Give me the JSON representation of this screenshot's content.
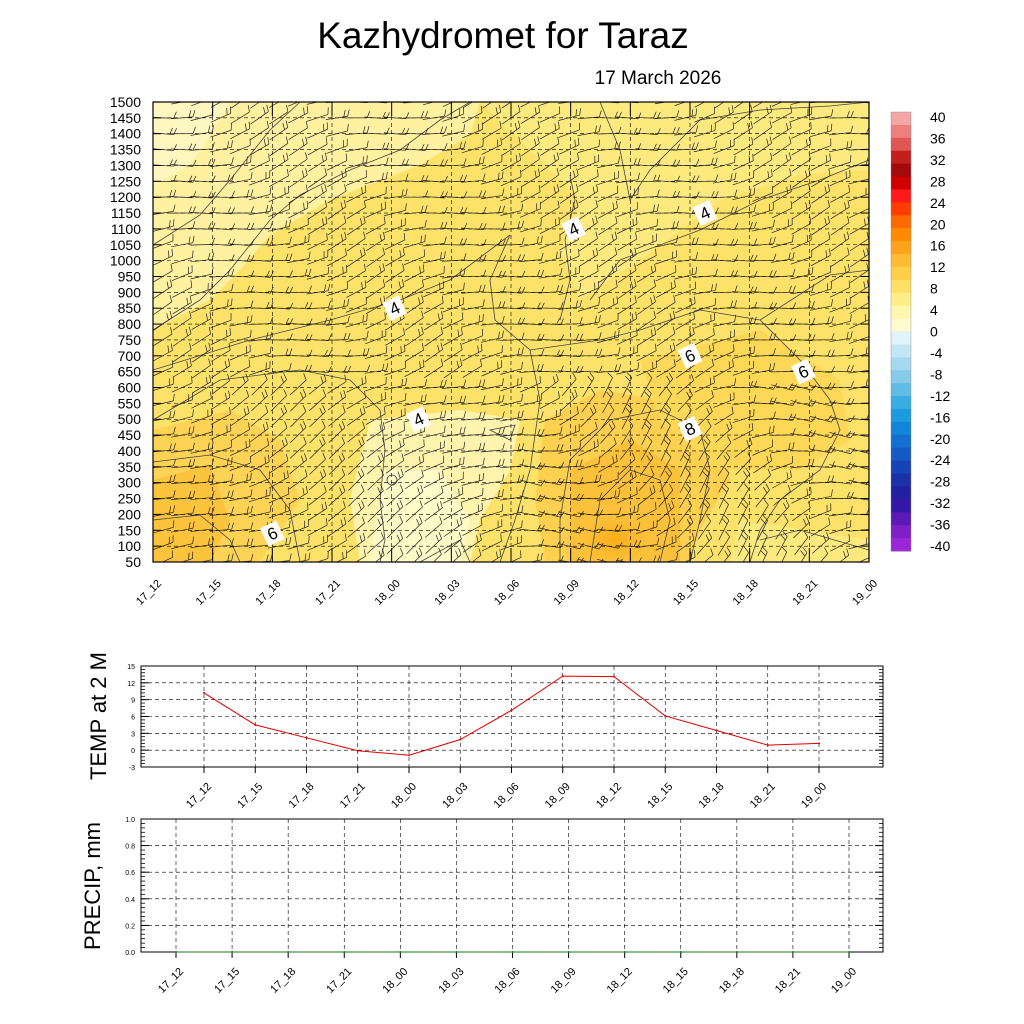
{
  "header": {
    "title": "Kazhydromet  for Taraz",
    "date": "17 March 2026"
  },
  "chart_data": [
    {
      "type": "heatmap",
      "name": "vertical-cross-section",
      "title": "Kazhydromet  for Taraz",
      "subtitle": "17 March 2026",
      "xlabel": "",
      "ylabel": "",
      "time_labels": [
        "17_12",
        "17_15",
        "17_18",
        "17_21",
        "18_00",
        "18_03",
        "18_06",
        "18_09",
        "18_12",
        "18_15",
        "18_18",
        "18_21",
        "19_00"
      ],
      "height_ticks": [
        50,
        100,
        150,
        200,
        250,
        300,
        350,
        400,
        450,
        500,
        550,
        600,
        650,
        700,
        750,
        800,
        850,
        900,
        950,
        1000,
        1050,
        1100,
        1150,
        1200,
        1250,
        1300,
        1350,
        1400,
        1450,
        1500
      ],
      "ylim": [
        50,
        1500
      ],
      "contour_labels": [
        {
          "text": "4",
          "time_index": 4.05,
          "height": 850
        },
        {
          "text": "4",
          "time_index": 4.45,
          "height": 500
        },
        {
          "text": "4",
          "time_index": 7.05,
          "height": 1100
        },
        {
          "text": "4",
          "time_index": 9.25,
          "height": 1150
        },
        {
          "text": "6",
          "time_index": 2.0,
          "height": 140
        },
        {
          "text": "6",
          "time_index": 9.0,
          "height": 700
        },
        {
          "text": "6",
          "time_index": 10.9,
          "height": 650
        },
        {
          "text": "8",
          "time_index": 9.0,
          "height": 470
        }
      ],
      "colorbar": {
        "labels": [
          "40",
          "36",
          "32",
          "28",
          "24",
          "20",
          "16",
          "12",
          "8",
          "4",
          "0",
          "-4",
          "-8",
          "-12",
          "-16",
          "-20",
          "-24",
          "-28",
          "-32",
          "-36",
          "-40"
        ],
        "colors": [
          "#f4a6a6",
          "#ee7f7f",
          "#e05656",
          "#c41f1f",
          "#a40a0a",
          "#d00000",
          "#ff1a1a",
          "#ff3d00",
          "#ff6a00",
          "#ff8c00",
          "#ffa31a",
          "#ffbb33",
          "#ffcf4a",
          "#ffe066",
          "#ffee88",
          "#fff7b0",
          "#fffbd0",
          "#e0f2fa",
          "#c4e6f4",
          "#a6d9ef",
          "#88cbe9",
          "#62bde5",
          "#3aaee4",
          "#1e9be0",
          "#1185d9",
          "#146fd0",
          "#1658c4",
          "#1843b7",
          "#1c30a8",
          "#2020a0",
          "#3418a8",
          "#5a1ab8",
          "#7e1fc8",
          "#9a26d8"
        ]
      }
    },
    {
      "type": "line",
      "name": "temp-2m",
      "ylabel": "TEMP at 2 M",
      "categories": [
        "17_12",
        "17_15",
        "17_18",
        "17_21",
        "18_00",
        "18_03",
        "18_06",
        "18_09",
        "18_12",
        "18_15",
        "18_18",
        "18_21",
        "19_00"
      ],
      "series": [
        {
          "name": "TEMP at 2 M",
          "color": "#e00000",
          "values": [
            10.2,
            4.5,
            2.2,
            -0.1,
            -0.9,
            1.9,
            7.1,
            13.2,
            13.1,
            6.1,
            3.5,
            0.9,
            1.2
          ]
        }
      ],
      "yticks": [
        "15",
        "12",
        "9",
        "6",
        "3",
        "0",
        "-3"
      ],
      "ylim": [
        -3,
        15
      ]
    },
    {
      "type": "line",
      "name": "precip",
      "ylabel": "PRECIP, mm",
      "categories": [
        "17_12",
        "17_15",
        "17_18",
        "17_21",
        "18_00",
        "18_03",
        "18_06",
        "18_09",
        "18_12",
        "18_15",
        "18_18",
        "18_21",
        "19_00"
      ],
      "series": [
        {
          "name": "PRECIP",
          "color": "#1a7a1a",
          "values": [
            0,
            0,
            0,
            0,
            0,
            0,
            0,
            0,
            0,
            0,
            0,
            0,
            0
          ]
        }
      ],
      "yticks": [
        "1.0",
        "0.8",
        "0.6",
        "0.4",
        "0.2",
        "0.0"
      ],
      "ylim": [
        0,
        1
      ]
    }
  ]
}
